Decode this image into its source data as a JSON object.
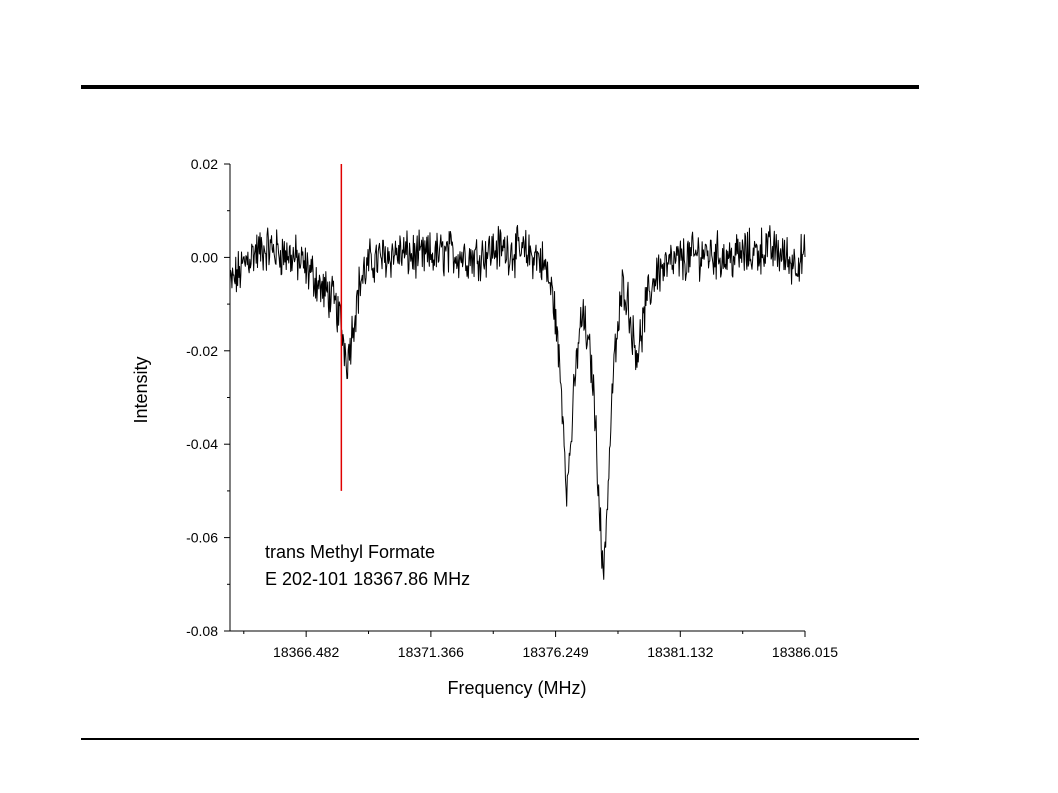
{
  "slide": {
    "rules": [
      "top",
      "bottom"
    ]
  },
  "chart_data": {
    "type": "line",
    "title": "",
    "xlabel": "Frequency (MHz)",
    "ylabel": "Intensity",
    "xlim": [
      18363.5,
      18386.015
    ],
    "ylim": [
      -0.08,
      0.02
    ],
    "x_ticks": [
      18366.482,
      18371.366,
      18376.249,
      18381.132,
      18386.015
    ],
    "x_tick_labels": [
      "18366.482",
      "18371.366",
      "18376.249",
      "18381.132",
      "18386.015"
    ],
    "y_ticks": [
      0.02,
      0.0,
      -0.02,
      -0.04,
      -0.06,
      -0.08
    ],
    "y_tick_labels": [
      "0.02",
      "0.00",
      "-0.02",
      "-0.04",
      "-0.06",
      "-0.08"
    ],
    "grid": false,
    "annotations": [
      "trans Methyl Formate",
      "E 202-101 18367.86 MHz"
    ],
    "marker_line": {
      "x": 18367.86,
      "y_range": [
        -0.05,
        0.02
      ],
      "color": "#e00000"
    },
    "series": [
      {
        "color": "#000000",
        "x": [
          18363.5,
          18363.9,
          18364.2,
          18364.5,
          18365.0,
          18365.5,
          18366.0,
          18366.4,
          18366.8,
          18367.1,
          18367.4,
          18367.6,
          18367.8,
          18367.95,
          18368.1,
          18368.3,
          18368.6,
          18369.0,
          18370.0,
          18371.0,
          18372.0,
          18373.0,
          18374.0,
          18375.0,
          18375.6,
          18375.9,
          18376.2,
          18376.5,
          18376.7,
          18376.9,
          18377.1,
          18377.3,
          18377.5,
          18377.7,
          18377.9,
          18378.1,
          18378.3,
          18378.5,
          18378.7,
          18378.9,
          18379.1,
          18379.3,
          18379.5,
          18379.8,
          18380.2,
          18381.0,
          18382.0,
          18383.0,
          18384.0,
          18384.5,
          18385.0,
          18385.5,
          18386.015
        ],
        "y": [
          -0.006,
          -0.003,
          0.0,
          0.001,
          0.002,
          0.001,
          0.0,
          -0.002,
          -0.004,
          -0.007,
          -0.008,
          -0.01,
          -0.013,
          -0.018,
          -0.022,
          -0.015,
          -0.005,
          -0.001,
          0.001,
          0.0,
          0.001,
          0.0,
          0.002,
          0.001,
          0.0,
          -0.003,
          -0.01,
          -0.03,
          -0.05,
          -0.035,
          -0.02,
          -0.012,
          -0.018,
          -0.025,
          -0.045,
          -0.069,
          -0.05,
          -0.025,
          -0.015,
          -0.005,
          -0.01,
          -0.018,
          -0.02,
          -0.01,
          -0.003,
          -0.001,
          0.001,
          0.0,
          0.001,
          0.002,
          0.001,
          -0.001,
          0.0
        ]
      }
    ]
  }
}
